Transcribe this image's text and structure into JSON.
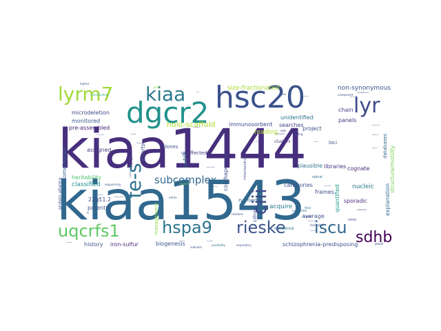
{
  "words": [
    {
      "text": "kiaa1444",
      "color": "#472f7d"
    },
    {
      "text": "kiaa1543",
      "color": "#30688e"
    },
    {
      "text": "hsc20",
      "color": "#3b528b"
    },
    {
      "text": "dgcr2",
      "color": "#21918c"
    },
    {
      "text": "lyrm7",
      "color": "#a0da39"
    },
    {
      "text": "kiaa",
      "color": "#2a788e"
    },
    {
      "text": "lyr",
      "color": "#3e4a89"
    },
    {
      "text": "uqcrfs1",
      "color": "#5ec962"
    },
    {
      "text": "hspa9",
      "color": "#2c728e"
    },
    {
      "text": "rieske",
      "color": "#3b528b"
    },
    {
      "text": "iscu",
      "color": "#31688e"
    },
    {
      "text": "sdhb",
      "color": "#440154"
    },
    {
      "text": "ciii",
      "color": "#3e4989"
    },
    {
      "text": "fe-s",
      "color": "#2d708e"
    },
    {
      "text": "subcomplex",
      "color": "#31688e"
    },
    {
      "text": "holo-scaffold",
      "color": "#addc30"
    },
    {
      "text": "size-fractionated",
      "color": "#a8db34"
    },
    {
      "text": "non-synonymous",
      "color": "#3b528b"
    },
    {
      "text": "structure/motility",
      "color": "#7ad151"
    },
    {
      "text": "microdeletion",
      "color": "#3f4889"
    },
    {
      "text": "monitored",
      "color": "#3b528b"
    },
    {
      "text": "pre-assembled",
      "color": "#482475"
    },
    {
      "text": "immunosorbent",
      "color": "#3e4c8a"
    },
    {
      "text": "unidentified",
      "color": "#2c728e"
    },
    {
      "text": "panels",
      "color": "#46337e"
    },
    {
      "text": "chain",
      "color": "#433e85"
    },
    {
      "text": "searches",
      "color": "#414487"
    },
    {
      "text": "reading",
      "color": "#b5de2b"
    },
    {
      "text": "project",
      "color": "#3b528b"
    },
    {
      "text": "co-chaperone",
      "color": "#3e4989"
    },
    {
      "text": "assigned",
      "color": "#443a83"
    },
    {
      "text": "inserts",
      "color": "#3b528b"
    },
    {
      "text": "homologues",
      "color": "#35608d"
    },
    {
      "text": "heritability",
      "color": "#4ec36b"
    },
    {
      "text": "classified",
      "color": "#21918c"
    },
    {
      "text": "libraries",
      "color": "#46307e"
    },
    {
      "text": "cognate",
      "color": "#472c7a"
    },
    {
      "text": "plausible",
      "color": "#2c728e"
    },
    {
      "text": "public",
      "color": "#31688e"
    },
    {
      "text": "categories",
      "color": "#3b528b"
    },
    {
      "text": "nucleic",
      "color": "#2a778e"
    },
    {
      "text": "explanation",
      "color": "#306a8e"
    },
    {
      "text": "quantified",
      "color": "#1e9b8a"
    },
    {
      "text": "acquire",
      "color": "#2a788e"
    },
    {
      "text": "sporadic",
      "color": "#472a7a"
    },
    {
      "text": "average",
      "color": "#3b528b"
    },
    {
      "text": "parents",
      "color": "#3b528b"
    },
    {
      "text": "22q11.2",
      "color": "#3e4989"
    },
    {
      "text": "frames",
      "color": "#3e4c8a"
    },
    {
      "text": "named",
      "color": "#31688e"
    },
    {
      "text": "loci",
      "color": "#3f4788"
    },
    {
      "text": "clusters",
      "color": "#46337e"
    },
    {
      "text": "clones",
      "color": "#3e4c8a"
    },
    {
      "text": "unaffected",
      "color": "#453781"
    },
    {
      "text": "history",
      "color": "#3b528b"
    },
    {
      "text": "iron-sulfur",
      "color": "#482878"
    },
    {
      "text": "biogenesis",
      "color": "#3b528b"
    },
    {
      "text": "schizophrenia-predisposing",
      "color": "#3b528b"
    },
    {
      "text": "cdnas",
      "color": "#3e4989"
    },
    {
      "text": "management",
      "color": "#8fd744"
    },
    {
      "text": "mitochondrial",
      "color": "#3e4989"
    },
    {
      "text": "databases",
      "color": "#31688e"
    },
    {
      "text": "protein-altering",
      "color": "#3b528b"
    },
    {
      "text": "incidence",
      "color": "#2a788e"
    },
    {
      "text": "cord",
      "color": "#3b528b"
    },
    {
      "text": "novo",
      "color": "#3e4989"
    },
    {
      "text": "spinal",
      "color": "#2c728e"
    },
    {
      "text": "conducted",
      "color": "#31688e"
    },
    {
      "text": "fetal",
      "color": "#2c728e"
    },
    {
      "text": "coding",
      "color": "#414487"
    },
    {
      "text": "transient",
      "color": "#3b528b"
    },
    {
      "text": "excess",
      "color": "#6ccd5a"
    },
    {
      "text": "residues",
      "color": "#3e4989"
    },
    {
      "text": "entire",
      "color": "#3b528b"
    },
    {
      "text": "sets",
      "color": "#472d7b"
    },
    {
      "text": "sequencing",
      "color": "#3b528b"
    },
    {
      "text": "intermediate",
      "color": "#35b779"
    },
    {
      "text": "hybrid",
      "color": "#3e4c8a"
    },
    {
      "text": "prior",
      "color": "#8fd744"
    },
    {
      "text": "rare",
      "color": "#3b528b"
    },
    {
      "text": "component",
      "color": "#3b528b"
    },
    {
      "text": "comparison",
      "color": "#3e4989"
    },
    {
      "text": "stabilizes",
      "color": "#3b528b"
    },
    {
      "text": "global",
      "color": "#3b528b"
    },
    {
      "text": "possibility",
      "color": "#2c728e"
    },
    {
      "text": "respiratory",
      "color": "#3b528b"
    },
    {
      "text": "subunits",
      "color": "#3b528b"
    },
    {
      "text": "facilitates",
      "color": "#3b528b"
    },
    {
      "text": "highlighting",
      "color": "#3b528b"
    },
    {
      "text": "matrix",
      "color": "#3b528b"
    },
    {
      "text": "kb",
      "color": "#3e4989"
    },
    {
      "text": "iii",
      "color": "#3b528b"
    },
    {
      "text": "bound",
      "color": "#3b528b"
    },
    {
      "text": "pseudo",
      "color": "#3b528b"
    },
    {
      "text": "human-rodent",
      "color": "#3b528b"
    },
    {
      "text": "presented",
      "color": "#3b528b"
    },
    {
      "text": "composed",
      "color": "#3b528b"
    },
    {
      "text": "self",
      "color": "#3b528b"
    },
    {
      "text": "identical",
      "color": "#3b528b"
    },
    {
      "text": "particularly",
      "color": "#3b528b"
    },
    {
      "text": "identifying",
      "color": "#3b528b"
    },
    {
      "text": "transcripts",
      "color": "#3b528b"
    },
    {
      "text": "branched",
      "color": "#3b528b"
    },
    {
      "text": "association",
      "color": "#3b528b"
    },
    {
      "text": "mutation",
      "color": "#3b528b"
    },
    {
      "text": "confirmed",
      "color": "#3b528b"
    },
    {
      "text": "consists",
      "color": "#3b528b"
    },
    {
      "text": "conserved",
      "color": "#3b528b"
    },
    {
      "text": "transfer",
      "color": "#3b528b"
    },
    {
      "text": "dehydrogenase",
      "color": "#3b528b"
    },
    {
      "text": "subunit",
      "color": "#3b528b"
    },
    {
      "text": "cluster",
      "color": "#3b528b"
    },
    {
      "text": "complexes",
      "color": "#3b528b"
    },
    {
      "text": "scaffold",
      "color": "#3b528b"
    },
    {
      "text": "ligand",
      "color": "#3b528b"
    },
    {
      "text": "assembly",
      "color": "#3b528b"
    },
    {
      "text": "ordered",
      "color": "#3b528b"
    },
    {
      "text": "essential",
      "color": "#3b528b"
    }
  ]
}
